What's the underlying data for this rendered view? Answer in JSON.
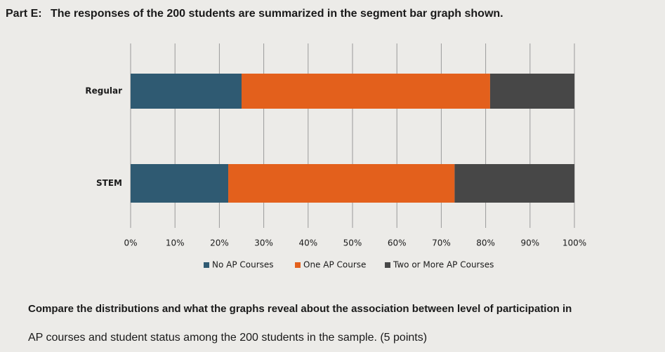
{
  "header": {
    "label": "Part E:",
    "text": "The responses of the 200 students are summarized in the segment bar graph shown."
  },
  "chart_data": {
    "type": "stacked-bar-horizontal",
    "categories": [
      "Regular",
      "STEM"
    ],
    "series": [
      {
        "name": "No AP Courses",
        "color": "#2f5a72",
        "values": [
          25,
          22
        ]
      },
      {
        "name": "One AP Course",
        "color": "#e3601c",
        "values": [
          56,
          51
        ]
      },
      {
        "name": "Two or More AP Courses",
        "color": "#474747",
        "values": [
          19,
          27
        ]
      }
    ],
    "xlim": [
      0,
      100
    ],
    "xticks": [
      {
        "value": 0,
        "label": "0%"
      },
      {
        "value": 10,
        "label": "10%"
      },
      {
        "value": 20,
        "label": "20%"
      },
      {
        "value": 30,
        "label": "30%"
      },
      {
        "value": 40,
        "label": "40%"
      },
      {
        "value": 50,
        "label": "50%"
      },
      {
        "value": 60,
        "label": "60%"
      },
      {
        "value": 70,
        "label": "70%"
      },
      {
        "value": 80,
        "label": "80%"
      },
      {
        "value": 90,
        "label": "90%"
      },
      {
        "value": 100,
        "label": "100%"
      }
    ],
    "grid": true,
    "legend": "bottom"
  },
  "question": {
    "lines": [
      "Compare the distributions and what the graphs reveal about the association between level of participation in",
      "AP courses and student status among the 200 students in the sample. (5 points)"
    ]
  }
}
